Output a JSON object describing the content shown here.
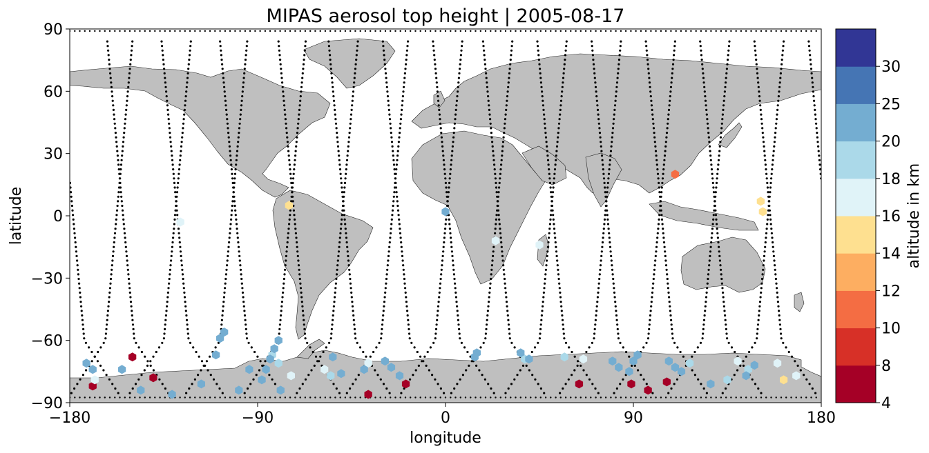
{
  "chart_data": {
    "type": "scatter",
    "title": "MIPAS aerosol top height | 2005-08-17",
    "xlabel": "longitude",
    "ylabel": "latitude",
    "xlim": [
      -180,
      180
    ],
    "ylim": [
      -90,
      90
    ],
    "xticks": [
      -180,
      -90,
      0,
      90,
      180
    ],
    "xtick_labels": [
      "−180",
      "−90",
      "0",
      "90",
      "180"
    ],
    "yticks": [
      -90,
      -60,
      -30,
      0,
      30,
      60,
      90
    ],
    "ytick_labels": [
      "−90",
      "−60",
      "−30",
      "0",
      "30",
      "60",
      "90"
    ],
    "grid": false,
    "background_map": "coastlines, land filled gray",
    "colorbar": {
      "label": "altitude in km",
      "colormap": "RdYlBu",
      "boundaries": [
        4,
        8,
        10,
        12,
        14,
        16,
        18,
        20,
        25,
        30
      ],
      "tick_labels": [
        "4",
        "8",
        "10",
        "12",
        "14",
        "16",
        "18",
        "20",
        "25",
        "30"
      ],
      "colors": [
        "#a50026",
        "#d73027",
        "#f46d43",
        "#fdae61",
        "#fee090",
        "#e0f3f8",
        "#abd9e9",
        "#74add1",
        "#4575b4",
        "#313695"
      ]
    },
    "series": [
      {
        "marker": "hexagon",
        "points": [
          [
            -150,
            -68,
            6
          ],
          [
            -140,
            -78,
            6
          ],
          [
            -169,
            -82,
            6
          ],
          [
            -37,
            -86,
            6
          ],
          [
            -19,
            -81,
            6
          ],
          [
            64,
            -81,
            6
          ],
          [
            89,
            -81,
            6
          ],
          [
            97,
            -84,
            6
          ],
          [
            106,
            -80,
            6
          ],
          [
            110,
            20,
            11
          ],
          [
            -75,
            5,
            15
          ],
          [
            151,
            7,
            15
          ],
          [
            152,
            2,
            15
          ],
          [
            162,
            -79,
            15
          ],
          [
            -127,
            -3,
            17
          ],
          [
            24,
            -12,
            17
          ],
          [
            45,
            -14,
            17
          ],
          [
            -168,
            -79,
            17
          ],
          [
            -74,
            -77,
            17
          ],
          [
            -58,
            -74,
            17
          ],
          [
            -37,
            -71,
            17
          ],
          [
            66,
            -69,
            17
          ],
          [
            140,
            -70,
            17
          ],
          [
            159,
            -71,
            17
          ],
          [
            168,
            -77,
            17
          ],
          [
            -83,
            -67,
            19
          ],
          [
            -80,
            -71,
            19
          ],
          [
            -55,
            -77,
            19
          ],
          [
            38,
            -69,
            19
          ],
          [
            57,
            -68,
            19
          ],
          [
            117,
            -71,
            19
          ],
          [
            135,
            -79,
            19
          ],
          [
            145,
            -74,
            19
          ],
          [
            0,
            2,
            22
          ],
          [
            -172,
            -71,
            22
          ],
          [
            -169,
            -74,
            22
          ],
          [
            -155,
            -74,
            22
          ],
          [
            -146,
            -84,
            22
          ],
          [
            -131,
            -86,
            22
          ],
          [
            -117,
            -81,
            22
          ],
          [
            -110,
            -67,
            22
          ],
          [
            -108,
            -59,
            22
          ],
          [
            -106,
            -56,
            22
          ],
          [
            -99,
            -84,
            22
          ],
          [
            -94,
            -74,
            22
          ],
          [
            -88,
            -79,
            22
          ],
          [
            -86,
            -74,
            22
          ],
          [
            -84,
            -69,
            22
          ],
          [
            -82,
            -64,
            22
          ],
          [
            -80,
            -60,
            22
          ],
          [
            -79,
            -84,
            22
          ],
          [
            -54,
            -68,
            22
          ],
          [
            -50,
            -76,
            22
          ],
          [
            -39,
            -74,
            22
          ],
          [
            -29,
            -70,
            22
          ],
          [
            -26,
            -73,
            22
          ],
          [
            -22,
            -77,
            22
          ],
          [
            14,
            -68,
            22
          ],
          [
            15,
            -66,
            22
          ],
          [
            36,
            -66,
            22
          ],
          [
            40,
            -69,
            22
          ],
          [
            80,
            -70,
            22
          ],
          [
            83,
            -73,
            22
          ],
          [
            88,
            -75,
            22
          ],
          [
            90,
            -70,
            22
          ],
          [
            92,
            -67,
            22
          ],
          [
            107,
            -70,
            22
          ],
          [
            110,
            -73,
            22
          ],
          [
            113,
            -75,
            22
          ],
          [
            127,
            -81,
            22
          ],
          [
            144,
            -77,
            22
          ],
          [
            148,
            -72,
            22
          ]
        ]
      }
    ]
  }
}
